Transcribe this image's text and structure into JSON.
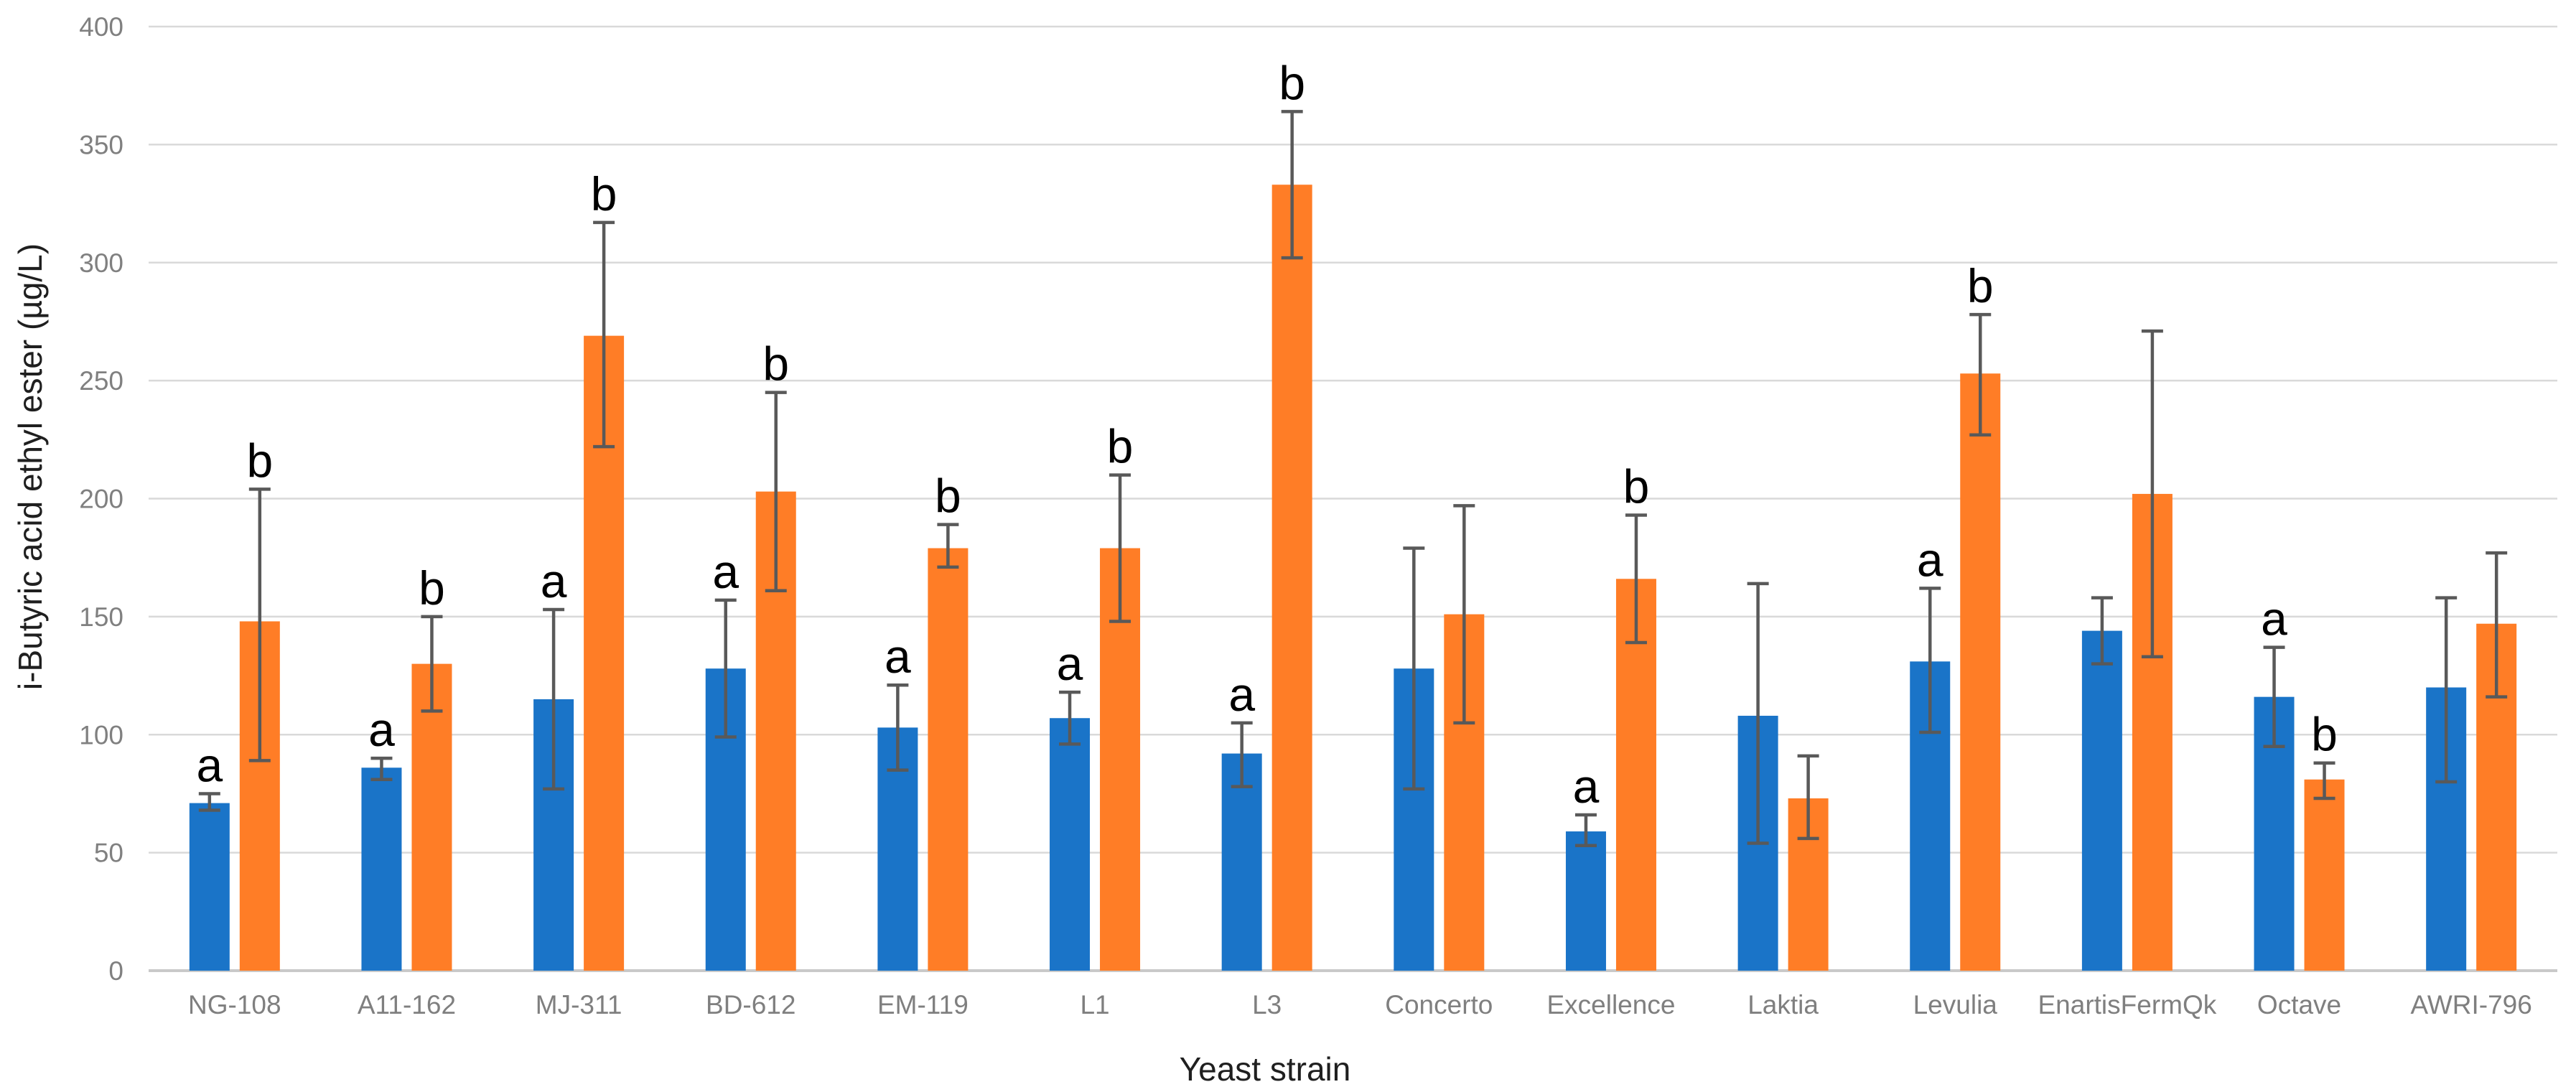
{
  "chart_data": {
    "type": "bar",
    "title": "",
    "xlabel": "Yeast strain",
    "ylabel": "i-Butyric acid ethyl ester (µg/L)",
    "ylim": [
      0,
      400
    ],
    "yticks": [
      0,
      50,
      100,
      150,
      200,
      250,
      300,
      350,
      400
    ],
    "grid": true,
    "legend": "none",
    "categories": [
      "NG-108",
      "A11-162",
      "MJ-311",
      "BD-612",
      "EM-119",
      "L1",
      "L3",
      "Concerto",
      "Excellence",
      "Laktia",
      "Levulia",
      "EnartisFermQk",
      "Octave",
      "AWRI-796"
    ],
    "series": [
      {
        "name": "series-blue",
        "color": "#1A74C8",
        "values": [
          71,
          86,
          115,
          128,
          103,
          107,
          92,
          128,
          59,
          108,
          131,
          144,
          116,
          120
        ],
        "err_min": [
          68,
          81,
          77,
          99,
          85,
          96,
          78,
          77,
          53,
          54,
          101,
          130,
          95,
          80
        ],
        "err_max": [
          75,
          90,
          153,
          157,
          121,
          118,
          105,
          179,
          66,
          164,
          162,
          158,
          137,
          158
        ],
        "letters": [
          "a",
          "a",
          "a",
          "a",
          "a",
          "a",
          "a",
          "",
          "a",
          "",
          "a",
          "",
          "a",
          ""
        ]
      },
      {
        "name": "series-orange",
        "color": "#FF7D26",
        "values": [
          148,
          130,
          269,
          203,
          179,
          179,
          333,
          151,
          166,
          73,
          253,
          202,
          81,
          147
        ],
        "err_min": [
          89,
          110,
          222,
          161,
          171,
          148,
          302,
          105,
          139,
          56,
          227,
          133,
          73,
          116
        ],
        "err_max": [
          204,
          150,
          317,
          245,
          189,
          210,
          364,
          197,
          193,
          91,
          278,
          271,
          88,
          177
        ],
        "letters": [
          "b",
          "b",
          "b",
          "b",
          "b",
          "b",
          "b",
          "",
          "b",
          "",
          "b",
          "",
          "b",
          ""
        ]
      }
    ],
    "colors": {
      "error_bar": "#595959",
      "gridline": "#D9D9D9",
      "axis_line": "#C9C9C9",
      "tick_label": "#808080",
      "category_label": "#7F7F7F",
      "letter": "#000000",
      "axis_title": "#1F1F1F"
    }
  }
}
